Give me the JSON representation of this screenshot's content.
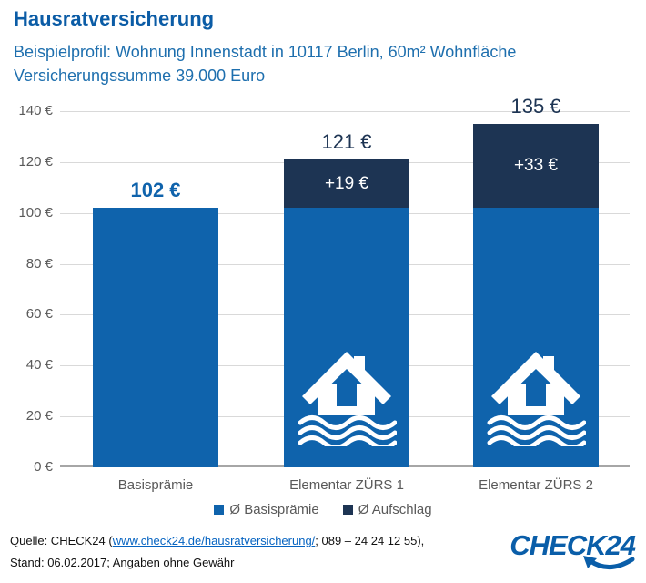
{
  "title": "Hausratversicherung",
  "subtitle": {
    "line1": "Beispielprofil: Wohnung Innenstadt in 10117 Berlin, 60m² Wohnfläche",
    "line2": "Versicherungssumme 39.000 Euro"
  },
  "chart_data": {
    "type": "bar",
    "stacked": true,
    "categories": [
      "Basisprämie",
      "Elementar ZÜRS 1",
      "Elementar ZÜRS 2"
    ],
    "series": [
      {
        "name": "Ø Basisprämie",
        "color": "#0f63ac",
        "values": [
          102,
          102,
          102
        ]
      },
      {
        "name": "Ø Aufschlag",
        "color": "#1d3453",
        "values": [
          0,
          19,
          33
        ]
      }
    ],
    "totals": [
      102,
      121,
      135
    ],
    "total_labels": [
      "102 €",
      "121 €",
      "135 €"
    ],
    "total_label_bold": [
      true,
      false,
      false
    ],
    "segment_labels": [
      null,
      "+19 €",
      "+33 €"
    ],
    "flood_icon_bars": [
      1,
      2
    ],
    "xlabel": "",
    "ylabel": "",
    "ylim": [
      0,
      140
    ],
    "y_tick_step": 20,
    "y_tick_labels": [
      "0 €",
      "20 €",
      "40 €",
      "60 €",
      "80 €",
      "100 €",
      "120 €",
      "140 €"
    ],
    "grid": true,
    "legend_position": "bottom"
  },
  "legend": [
    {
      "label": "Ø Basisprämie",
      "color": "#0f63ac"
    },
    {
      "label": "Ø Aufschlag",
      "color": "#1d3453"
    }
  ],
  "footer": {
    "source_prefix": "Quelle: CHECK24 (",
    "source_link": "www.check24.de/hausratversicherung/",
    "source_suffix": "; 089 – 24 24 12 55),",
    "line2": "Stand: 06.02.2017; Angaben ohne Gewähr"
  },
  "logo": {
    "text": "CHECK24",
    "color": "#0a5ea9"
  },
  "icons": {
    "flood_house": "house-flood-icon",
    "logo_arrow": "logo-arrow-icon"
  },
  "colors": {
    "title_blue": "#0b5ca6",
    "subtitle_blue": "#1e6fae",
    "bar_blue": "#0f63ac",
    "bar_navy": "#1d3453",
    "axis_text": "#595959",
    "gridline": "#d9d9d9",
    "baseline": "#a6a6a6",
    "link_blue": "#0563c1"
  }
}
